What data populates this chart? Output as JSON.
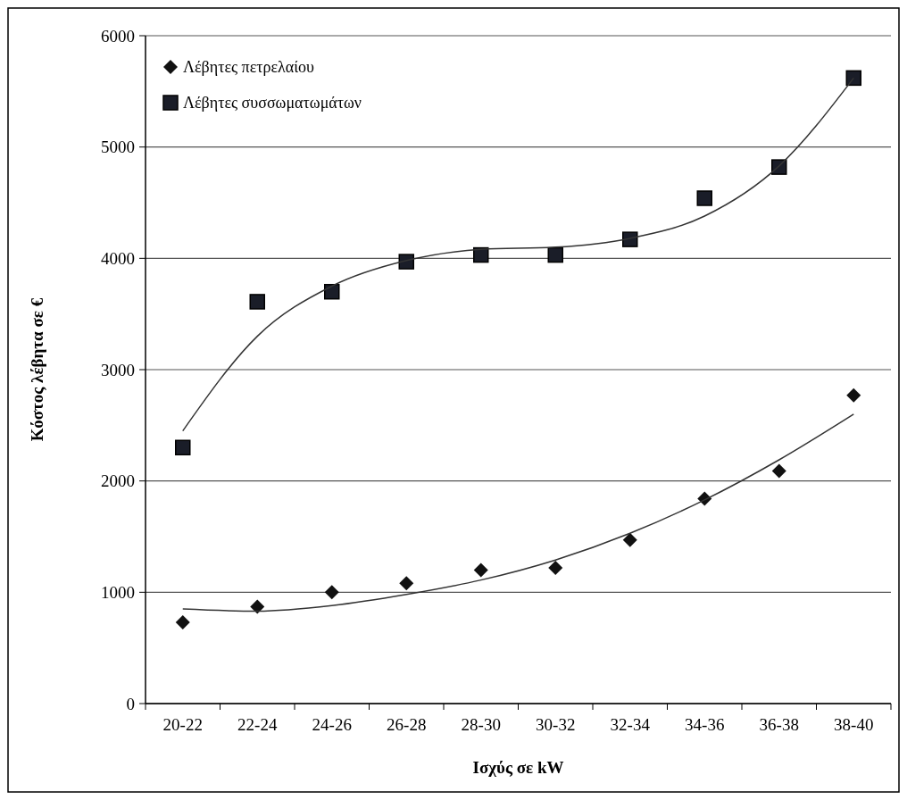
{
  "chart_data": {
    "type": "scatter",
    "xlabel": "Ισχύς σε kW",
    "ylabel": "Κόστος λέβητα σε €",
    "categories": [
      "20-22",
      "22-24",
      "24-26",
      "26-28",
      "28-30",
      "30-32",
      "32-34",
      "34-36",
      "36-38",
      "38-40"
    ],
    "series": [
      {
        "name": "Λέβητες πετρελαίου",
        "marker": "diamond",
        "color": "#111111",
        "values": [
          730,
          870,
          1000,
          1080,
          1200,
          1220,
          1470,
          1840,
          2090,
          2770
        ]
      },
      {
        "name": "Λέβητες συσσωματωμάτων",
        "marker": "square",
        "color": "#1a1d28",
        "values": [
          2300,
          3610,
          3700,
          3970,
          4030,
          4030,
          4170,
          4540,
          4820,
          5620
        ]
      },
      {
        "type": "line",
        "color": "#333333",
        "line_style": "solid",
        "marker": "none",
        "values": [
          850,
          830,
          880,
          980,
          1110,
          1290,
          1530,
          1830,
          2190,
          2600
        ]
      },
      {
        "type": "line",
        "color": "#333333",
        "line_style": "solid",
        "marker": "none",
        "values": [
          2450,
          3300,
          3750,
          3980,
          4080,
          4100,
          4180,
          4380,
          4830,
          5620
        ]
      }
    ],
    "ylim": [
      0,
      6000
    ],
    "yticks": [
      0,
      1000,
      2000,
      3000,
      4000,
      5000,
      6000
    ],
    "grid": "y",
    "legend": "top left"
  }
}
